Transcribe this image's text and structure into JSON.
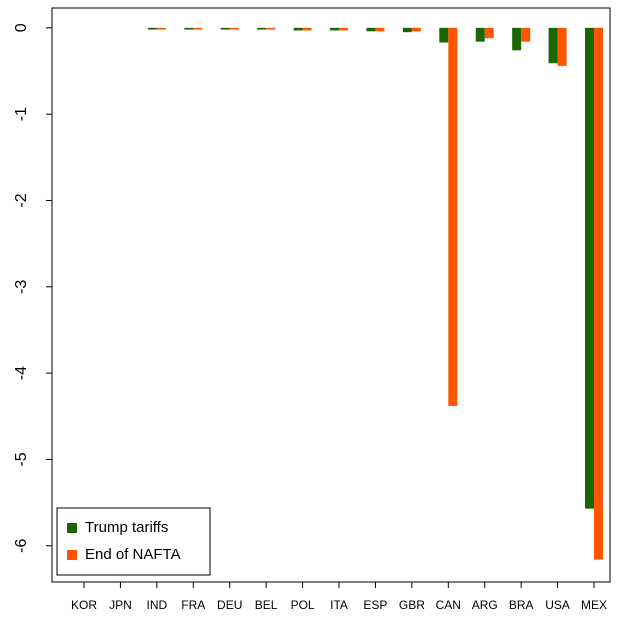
{
  "chart_data": {
    "type": "bar",
    "categories": [
      "KOR",
      "JPN",
      "IND",
      "FRA",
      "DEU",
      "BEL",
      "POL",
      "ITA",
      "ESP",
      "GBR",
      "CAN",
      "ARG",
      "BRA",
      "USA",
      "MEX"
    ],
    "series": [
      {
        "name": "Trump tariffs",
        "color": "#1a6600",
        "values": [
          0,
          0,
          -0.02,
          -0.02,
          -0.02,
          -0.02,
          -0.03,
          -0.03,
          -0.04,
          -0.05,
          -0.17,
          -0.16,
          -0.26,
          -0.41,
          -5.57
        ]
      },
      {
        "name": "End of NAFTA",
        "color": "#ff5500",
        "values": [
          0,
          0,
          -0.02,
          -0.02,
          -0.02,
          -0.02,
          -0.03,
          -0.03,
          -0.04,
          -0.04,
          -4.38,
          -0.12,
          -0.16,
          -0.44,
          -6.16
        ]
      }
    ],
    "ylim": [
      -6.42,
      0.23
    ],
    "yticks": [
      0,
      -1,
      -2,
      -3,
      -4,
      -5,
      -6
    ],
    "grid": true,
    "legend": "bottom-left"
  }
}
